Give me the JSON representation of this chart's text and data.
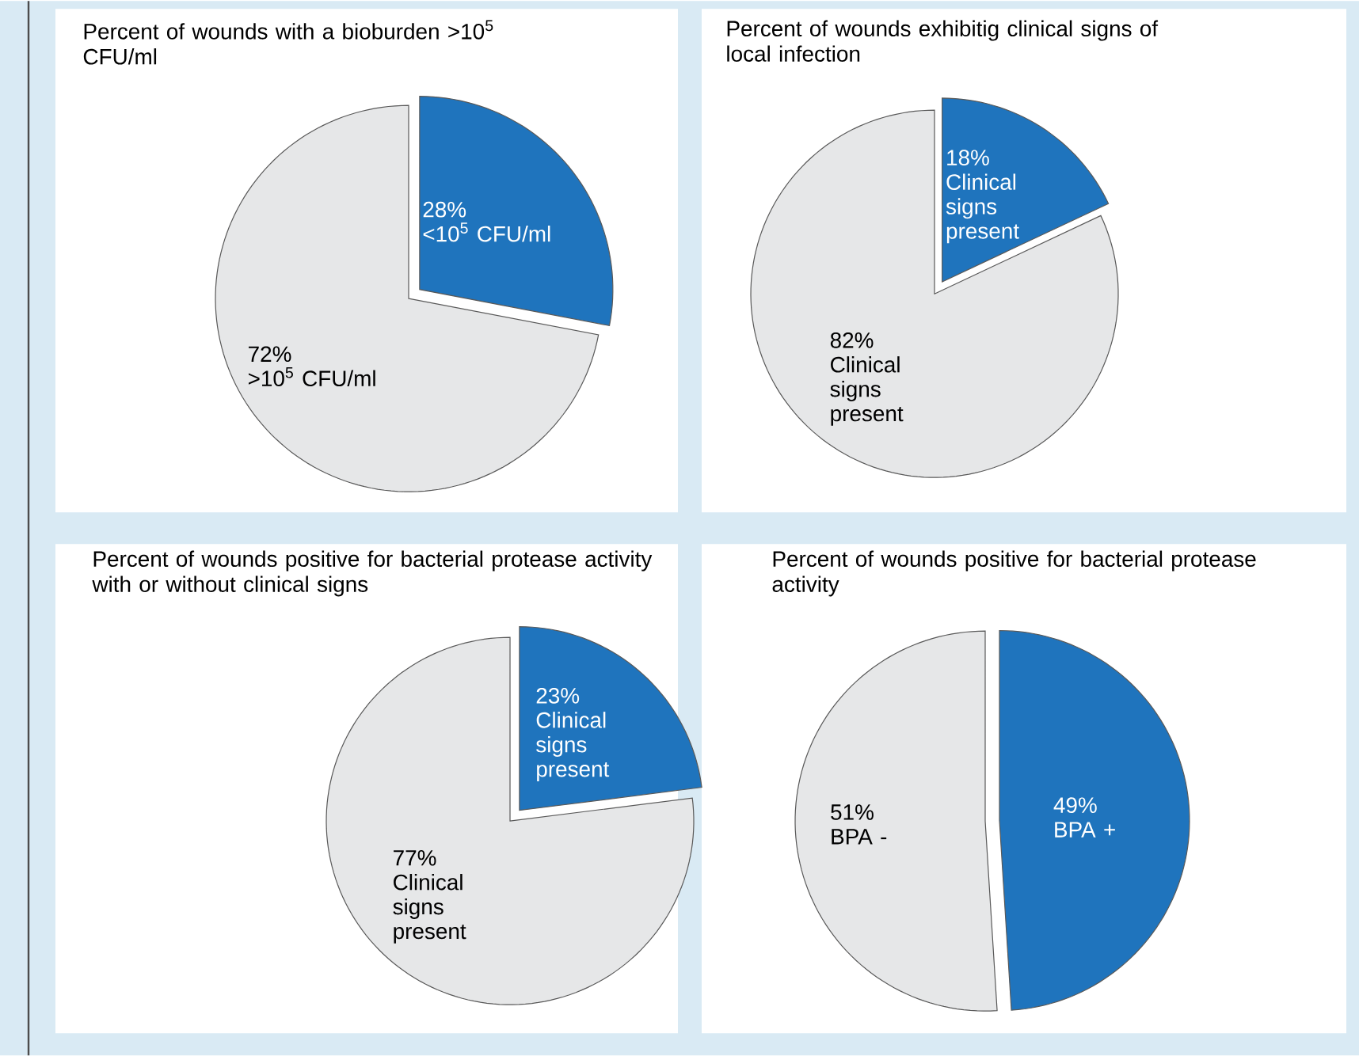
{
  "chart_data": [
    {
      "type": "pie",
      "title": "Percent of wounds with a bioburden >10$^{5}$ CFU/ml",
      "categories": [
        "<10$^{5}$ CFU/ml",
        ">10$^{5}$ CFU/ml"
      ],
      "values": [
        28,
        72
      ],
      "value_labels": [
        "28%",
        "72%"
      ],
      "colors": [
        "#1f74bd",
        "#e6e7e8"
      ]
    },
    {
      "type": "pie",
      "title": "Percent of wounds exhibitig clinical signs of local infection",
      "categories": [
        "Clinical signs present",
        "Clinical signs present"
      ],
      "values": [
        18,
        82
      ],
      "value_labels": [
        "18%",
        "82%"
      ],
      "colors": [
        "#1f74bd",
        "#e6e7e8"
      ]
    },
    {
      "type": "pie",
      "title": "Percent of wounds positive for bacterial protease activity with or without clinical signs",
      "categories": [
        "Clinical signs present",
        "Clinical signs present"
      ],
      "values": [
        23,
        77
      ],
      "value_labels": [
        "23%",
        "77%"
      ],
      "colors": [
        "#1f74bd",
        "#e6e7e8"
      ]
    },
    {
      "type": "pie",
      "title": "Percent of wounds positive for bacterial protease activity",
      "categories": [
        "BPA +",
        "BPA -"
      ],
      "values": [
        49,
        51
      ],
      "value_labels": [
        "49%",
        "51%"
      ],
      "colors": [
        "#1f74bd",
        "#e6e7e8"
      ]
    }
  ]
}
